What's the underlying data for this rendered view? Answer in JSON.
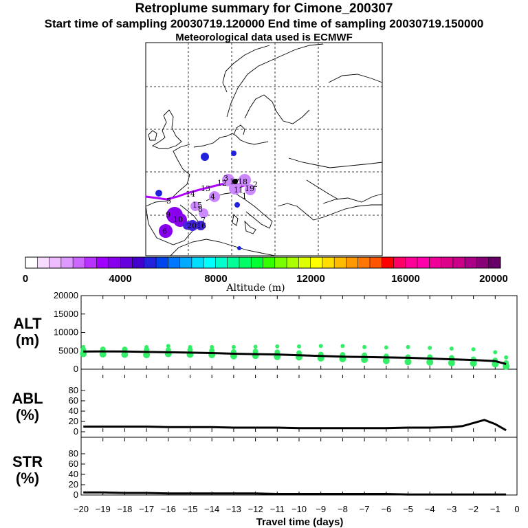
{
  "header": {
    "title": "Retroplume summary for Cimone_200307",
    "sampling": "Start time of sampling 20030719.120000     End time of sampling 20030719.150000",
    "met": "Meteorological data used is ECMWF"
  },
  "colors": {
    "line": "#000000",
    "track": "#b000ff",
    "points": "#33ee66",
    "plume_light": "#cc88ff",
    "plume_dark": "#8800ee",
    "plume_blue": "#2222dd"
  },
  "map": {
    "track_labels": [
      "1",
      "2",
      "3",
      "4",
      "5",
      "6",
      "7",
      "8",
      "9",
      "10",
      "11",
      "12",
      "13",
      "14",
      "15",
      "16",
      "17",
      "18",
      "19",
      "20"
    ]
  },
  "colorbar": {
    "title": "Altitude (m)",
    "ticks": [
      "0",
      "4000",
      "8000",
      "12000",
      "16000",
      "20000"
    ],
    "min": 0,
    "max": 20000,
    "colors": [
      "#ffffff",
      "#f7dcff",
      "#eebbff",
      "#dd99ff",
      "#cc66ff",
      "#b833ff",
      "#a000ff",
      "#8800ee",
      "#6600dd",
      "#4400cc",
      "#2222dd",
      "#0044ee",
      "#0077ff",
      "#00aaff",
      "#00ddff",
      "#00ffff",
      "#00ffcc",
      "#00ff99",
      "#00ff66",
      "#00ff33",
      "#33ff00",
      "#77ff00",
      "#aaff00",
      "#ddff00",
      "#ffff00",
      "#ffdd00",
      "#ffbb00",
      "#ff9900",
      "#ff7700",
      "#ff5500",
      "#ff0000",
      "#ff0066",
      "#ff0099",
      "#ff00aa",
      "#ee0099",
      "#dd0088",
      "#cc0088",
      "#aa0088",
      "#880077",
      "#660066"
    ]
  },
  "chart_data": [
    {
      "type": "line",
      "name": "ALT",
      "ylabel": "ALT (m)",
      "ylabel_lines": [
        "ALT",
        "(m)"
      ],
      "ylim": [
        0,
        20000
      ],
      "yticks": [
        0,
        5000,
        10000,
        15000,
        20000
      ],
      "x": [
        -19.9,
        -19,
        -18,
        -17,
        -16,
        -15,
        -14,
        -13,
        -12,
        -11,
        -10,
        -9,
        -8,
        -7,
        -6,
        -5,
        -4,
        -3,
        -2,
        -1,
        -0.5
      ],
      "y": [
        4800,
        4850,
        4800,
        4700,
        4600,
        4500,
        4400,
        4200,
        4100,
        4000,
        3800,
        3600,
        3400,
        3300,
        3200,
        3100,
        2900,
        2700,
        2500,
        2200,
        1400
      ],
      "scatter": [
        {
          "x": -19.9,
          "y": [
            4200,
            5300,
            6000
          ]
        },
        {
          "x": -19,
          "y": [
            4100,
            5400
          ]
        },
        {
          "x": -18,
          "y": [
            4000,
            5400
          ]
        },
        {
          "x": -17,
          "y": [
            3900,
            5300,
            6000
          ]
        },
        {
          "x": -16,
          "y": [
            4200,
            5200,
            6300
          ]
        },
        {
          "x": -15,
          "y": [
            4000,
            5200,
            6000
          ]
        },
        {
          "x": -14,
          "y": [
            3900,
            5000,
            6000
          ]
        },
        {
          "x": -13,
          "y": [
            3600,
            4700,
            6000
          ]
        },
        {
          "x": -12,
          "y": [
            3700,
            4800,
            6100
          ]
        },
        {
          "x": -11,
          "y": [
            3400,
            4600,
            6200
          ]
        },
        {
          "x": -10,
          "y": [
            3300,
            4400,
            6200
          ]
        },
        {
          "x": -9,
          "y": [
            3000,
            4000,
            6300
          ]
        },
        {
          "x": -8,
          "y": [
            2800,
            3900,
            6300
          ]
        },
        {
          "x": -7,
          "y": [
            2600,
            3800,
            6000
          ]
        },
        {
          "x": -6,
          "y": [
            2300,
            3500,
            5900
          ]
        },
        {
          "x": -5,
          "y": [
            2000,
            3300,
            6000
          ]
        },
        {
          "x": -4,
          "y": [
            1900,
            3300,
            5800
          ]
        },
        {
          "x": -3,
          "y": [
            1700,
            3100,
            5600
          ]
        },
        {
          "x": -2,
          "y": [
            1600,
            2700,
            5400
          ]
        },
        {
          "x": -1,
          "y": [
            1400,
            2400,
            4600
          ]
        },
        {
          "x": -0.5,
          "y": [
            800,
            1700,
            3200
          ]
        }
      ]
    },
    {
      "type": "line",
      "name": "ABL",
      "ylabel": "ABL (%)",
      "ylabel_lines": [
        "ABL",
        "(%)"
      ],
      "ylim": [
        0,
        100
      ],
      "yticks": [
        0,
        20,
        40,
        60,
        80
      ],
      "x": [
        -19.9,
        -19,
        -18,
        -17,
        -16,
        -15,
        -14,
        -13,
        -12,
        -11,
        -10,
        -9,
        -8,
        -7,
        -6,
        -5,
        -4,
        -3,
        -2.5,
        -2,
        -1.5,
        -1,
        -0.5
      ],
      "y": [
        10,
        10,
        10,
        10,
        9,
        9,
        9,
        8,
        8,
        8,
        7,
        7,
        7,
        7,
        7,
        8,
        8,
        9,
        11,
        17,
        23,
        15,
        3
      ]
    },
    {
      "type": "line",
      "name": "STR",
      "ylabel": "STR (%)",
      "ylabel_lines": [
        "STR",
        "(%)"
      ],
      "ylim": [
        0,
        100
      ],
      "yticks": [
        0,
        20,
        40,
        60,
        80
      ],
      "x": [
        -19.9,
        -19,
        -18,
        -17,
        -16,
        -15,
        -14,
        -13,
        -12,
        -11,
        -10,
        -9,
        -8,
        -7,
        -6,
        -5,
        -4,
        -3,
        -2,
        -1,
        -0.5
      ],
      "y": [
        5,
        5,
        4,
        4,
        3,
        3,
        3,
        3,
        3,
        2,
        2,
        2,
        2,
        2,
        2,
        1,
        1,
        1,
        1,
        1,
        1
      ],
      "xlabel": "Travel time (days)",
      "xlim": [
        -20,
        0
      ],
      "xticks": [
        -20,
        -19,
        -18,
        -17,
        -16,
        -15,
        -14,
        -13,
        -12,
        -11,
        -10,
        -9,
        -8,
        -7,
        -6,
        -5,
        -4,
        -3,
        -2,
        -1,
        0
      ]
    }
  ]
}
